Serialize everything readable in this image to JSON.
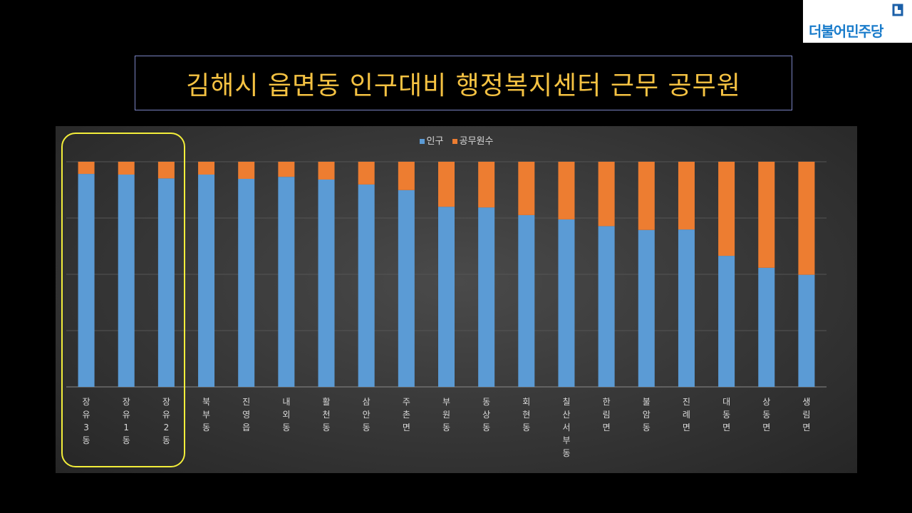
{
  "logo": {
    "text": "더불어민주당",
    "mark_color": "#1a5fa8"
  },
  "title": "김해시 읍면동 인구대비 행정복지센터 근무 공무원",
  "chart_data": {
    "type": "bar",
    "stacked": "100%",
    "categories": [
      "장유3동",
      "장유1동",
      "장유2동",
      "북부동",
      "진영읍",
      "내외동",
      "활천동",
      "삼안동",
      "주촌면",
      "부원동",
      "동상동",
      "회현동",
      "칠산서부동",
      "한림면",
      "불암동",
      "진례면",
      "대동면",
      "상동면",
      "생림면"
    ],
    "series": [
      {
        "name": "인구",
        "color": "#5b9bd5",
        "values": [
          94.6,
          94.3,
          92.6,
          94.3,
          92.4,
          93.3,
          92.1,
          89.9,
          87.4,
          80.0,
          79.7,
          76.3,
          74.4,
          71.4,
          69.7,
          69.9,
          58.2,
          52.9,
          49.8
        ]
      },
      {
        "name": "공무원수",
        "color": "#ed7d31",
        "values": [
          5.4,
          5.7,
          7.4,
          5.7,
          7.6,
          6.7,
          7.9,
          10.1,
          12.6,
          20.0,
          20.3,
          23.7,
          25.6,
          28.6,
          30.3,
          30.1,
          41.8,
          47.1,
          50.2
        ]
      }
    ],
    "ylim": [
      0,
      100
    ],
    "grid": true,
    "legend_position": "top",
    "highlighted_categories": [
      "장유3동",
      "장유1동",
      "장유2동"
    ],
    "highlight_color": "#f3ee3a"
  }
}
